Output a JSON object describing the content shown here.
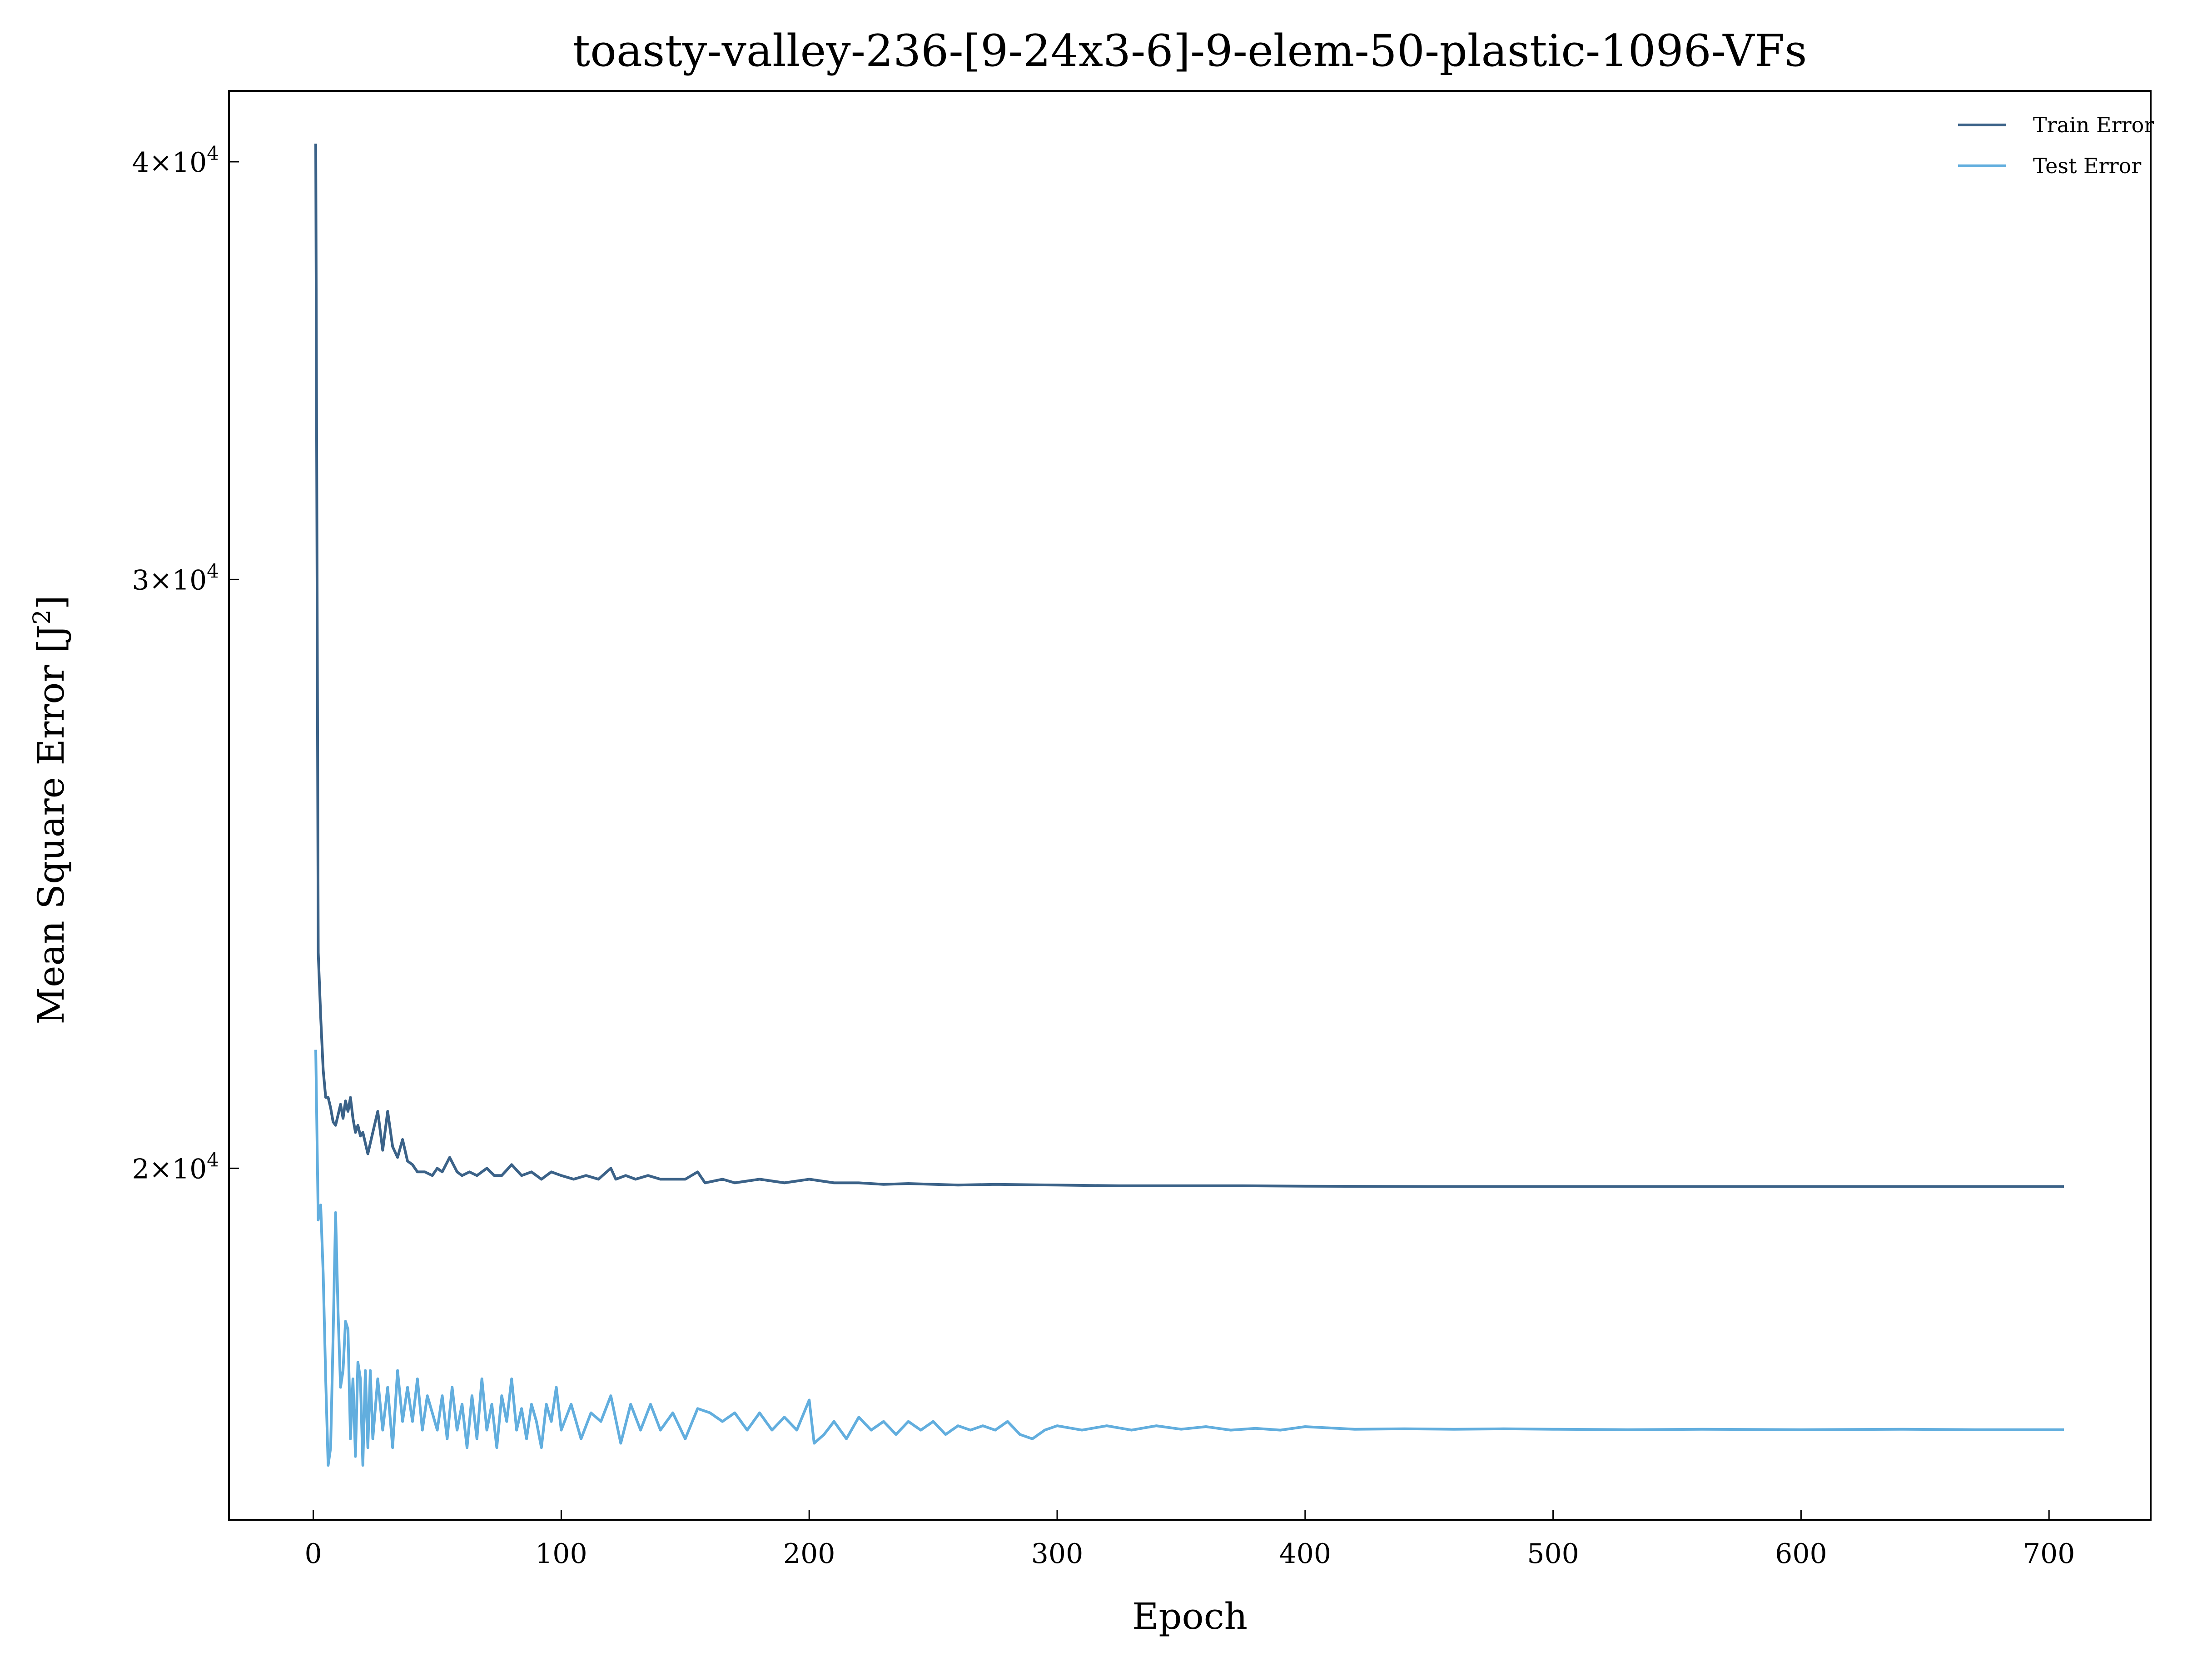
{
  "chart_data": {
    "type": "line",
    "title": "toasty-valley-236-[9-24x3-6]-9-elem-50-plastic-1096-VFs",
    "xlabel": "Epoch",
    "ylabel": "Mean Square Error [J",
    "ylabel_sup": "2",
    "ylabel_close": "]",
    "yscale": "log",
    "xlim": [
      -34,
      741
    ],
    "ylim": [
      15700,
      42000
    ],
    "x_ticks": [
      0,
      100,
      200,
      300,
      400,
      500,
      600,
      700
    ],
    "y_ticks": [
      {
        "value": 40000,
        "mantissa": "4",
        "base": "10",
        "exp": "4"
      },
      {
        "value": 30000,
        "mantissa": "3",
        "base": "10",
        "exp": "4"
      },
      {
        "value": 20000,
        "mantissa": "2",
        "base": "10",
        "exp": "4"
      }
    ],
    "legend_position": "top-right",
    "grid": false,
    "series": [
      {
        "name": "Train Error",
        "color": "#3b6288",
        "points": [
          [
            1,
            40500
          ],
          [
            2,
            23200
          ],
          [
            3,
            22200
          ],
          [
            4,
            21400
          ],
          [
            5,
            21000
          ],
          [
            6,
            21000
          ],
          [
            7,
            20850
          ],
          [
            8,
            20650
          ],
          [
            9,
            20600
          ],
          [
            10,
            20750
          ],
          [
            11,
            20900
          ],
          [
            12,
            20700
          ],
          [
            13,
            20950
          ],
          [
            14,
            20800
          ],
          [
            15,
            21000
          ],
          [
            16,
            20700
          ],
          [
            17,
            20500
          ],
          [
            18,
            20600
          ],
          [
            19,
            20450
          ],
          [
            20,
            20500
          ],
          [
            22,
            20200
          ],
          [
            24,
            20500
          ],
          [
            26,
            20800
          ],
          [
            28,
            20250
          ],
          [
            30,
            20800
          ],
          [
            32,
            20300
          ],
          [
            34,
            20150
          ],
          [
            36,
            20400
          ],
          [
            38,
            20100
          ],
          [
            40,
            20050
          ],
          [
            42,
            19950
          ],
          [
            45,
            19950
          ],
          [
            48,
            19900
          ],
          [
            50,
            20000
          ],
          [
            52,
            19950
          ],
          [
            55,
            20150
          ],
          [
            58,
            19950
          ],
          [
            60,
            19900
          ],
          [
            63,
            19950
          ],
          [
            66,
            19900
          ],
          [
            70,
            20000
          ],
          [
            73,
            19900
          ],
          [
            76,
            19900
          ],
          [
            80,
            20050
          ],
          [
            84,
            19900
          ],
          [
            88,
            19950
          ],
          [
            92,
            19850
          ],
          [
            96,
            19950
          ],
          [
            100,
            19900
          ],
          [
            105,
            19850
          ],
          [
            110,
            19900
          ],
          [
            115,
            19850
          ],
          [
            120,
            20000
          ],
          [
            122,
            19850
          ],
          [
            126,
            19900
          ],
          [
            130,
            19850
          ],
          [
            135,
            19900
          ],
          [
            140,
            19850
          ],
          [
            145,
            19850
          ],
          [
            150,
            19850
          ],
          [
            155,
            19950
          ],
          [
            158,
            19800
          ],
          [
            165,
            19850
          ],
          [
            170,
            19800
          ],
          [
            180,
            19850
          ],
          [
            190,
            19800
          ],
          [
            200,
            19850
          ],
          [
            210,
            19800
          ],
          [
            220,
            19800
          ],
          [
            230,
            19780
          ],
          [
            240,
            19790
          ],
          [
            260,
            19770
          ],
          [
            275,
            19780
          ],
          [
            300,
            19770
          ],
          [
            325,
            19760
          ],
          [
            350,
            19760
          ],
          [
            375,
            19760
          ],
          [
            400,
            19755
          ],
          [
            450,
            19750
          ],
          [
            500,
            19750
          ],
          [
            550,
            19750
          ],
          [
            600,
            19750
          ],
          [
            650,
            19750
          ],
          [
            706,
            19750
          ]
        ]
      },
      {
        "name": "Test Error",
        "color": "#62aede",
        "points": [
          [
            1,
            21700
          ],
          [
            2,
            19300
          ],
          [
            3,
            19500
          ],
          [
            4,
            18600
          ],
          [
            5,
            17300
          ],
          [
            6,
            16300
          ],
          [
            7,
            16500
          ],
          [
            8,
            17800
          ],
          [
            9,
            19400
          ],
          [
            10,
            18100
          ],
          [
            11,
            17200
          ],
          [
            12,
            17400
          ],
          [
            13,
            18000
          ],
          [
            14,
            17900
          ],
          [
            15,
            16600
          ],
          [
            16,
            17300
          ],
          [
            17,
            16400
          ],
          [
            18,
            17500
          ],
          [
            19,
            17300
          ],
          [
            20,
            16300
          ],
          [
            21,
            17400
          ],
          [
            22,
            16500
          ],
          [
            23,
            17400
          ],
          [
            24,
            16600
          ],
          [
            26,
            17300
          ],
          [
            28,
            16700
          ],
          [
            30,
            17200
          ],
          [
            32,
            16500
          ],
          [
            34,
            17400
          ],
          [
            36,
            16800
          ],
          [
            38,
            17200
          ],
          [
            40,
            16800
          ],
          [
            42,
            17300
          ],
          [
            44,
            16700
          ],
          [
            46,
            17100
          ],
          [
            48,
            16900
          ],
          [
            50,
            16700
          ],
          [
            52,
            17100
          ],
          [
            54,
            16600
          ],
          [
            56,
            17200
          ],
          [
            58,
            16700
          ],
          [
            60,
            17000
          ],
          [
            62,
            16500
          ],
          [
            64,
            17100
          ],
          [
            66,
            16600
          ],
          [
            68,
            17300
          ],
          [
            70,
            16700
          ],
          [
            72,
            17000
          ],
          [
            74,
            16500
          ],
          [
            76,
            17100
          ],
          [
            78,
            16800
          ],
          [
            80,
            17300
          ],
          [
            82,
            16700
          ],
          [
            84,
            16950
          ],
          [
            86,
            16600
          ],
          [
            88,
            17000
          ],
          [
            90,
            16800
          ],
          [
            92,
            16500
          ],
          [
            94,
            17000
          ],
          [
            96,
            16800
          ],
          [
            98,
            17200
          ],
          [
            100,
            16700
          ],
          [
            104,
            17000
          ],
          [
            108,
            16600
          ],
          [
            112,
            16900
          ],
          [
            116,
            16800
          ],
          [
            120,
            17100
          ],
          [
            124,
            16550
          ],
          [
            128,
            17000
          ],
          [
            132,
            16700
          ],
          [
            136,
            17000
          ],
          [
            140,
            16700
          ],
          [
            145,
            16900
          ],
          [
            150,
            16600
          ],
          [
            155,
            16950
          ],
          [
            160,
            16900
          ],
          [
            165,
            16800
          ],
          [
            170,
            16900
          ],
          [
            175,
            16700
          ],
          [
            180,
            16900
          ],
          [
            185,
            16700
          ],
          [
            190,
            16850
          ],
          [
            195,
            16700
          ],
          [
            200,
            17050
          ],
          [
            202,
            16550
          ],
          [
            206,
            16650
          ],
          [
            210,
            16800
          ],
          [
            215,
            16600
          ],
          [
            220,
            16850
          ],
          [
            225,
            16700
          ],
          [
            230,
            16800
          ],
          [
            235,
            16650
          ],
          [
            240,
            16800
          ],
          [
            245,
            16700
          ],
          [
            250,
            16800
          ],
          [
            255,
            16650
          ],
          [
            260,
            16750
          ],
          [
            265,
            16700
          ],
          [
            270,
            16750
          ],
          [
            275,
            16700
          ],
          [
            280,
            16800
          ],
          [
            285,
            16650
          ],
          [
            290,
            16600
          ],
          [
            295,
            16700
          ],
          [
            300,
            16750
          ],
          [
            310,
            16700
          ],
          [
            320,
            16750
          ],
          [
            330,
            16700
          ],
          [
            340,
            16750
          ],
          [
            350,
            16710
          ],
          [
            360,
            16740
          ],
          [
            370,
            16700
          ],
          [
            380,
            16720
          ],
          [
            390,
            16700
          ],
          [
            400,
            16740
          ],
          [
            420,
            16710
          ],
          [
            440,
            16715
          ],
          [
            460,
            16710
          ],
          [
            480,
            16715
          ],
          [
            500,
            16710
          ],
          [
            530,
            16705
          ],
          [
            560,
            16710
          ],
          [
            600,
            16705
          ],
          [
            640,
            16710
          ],
          [
            670,
            16705
          ],
          [
            706,
            16705
          ]
        ]
      }
    ]
  }
}
